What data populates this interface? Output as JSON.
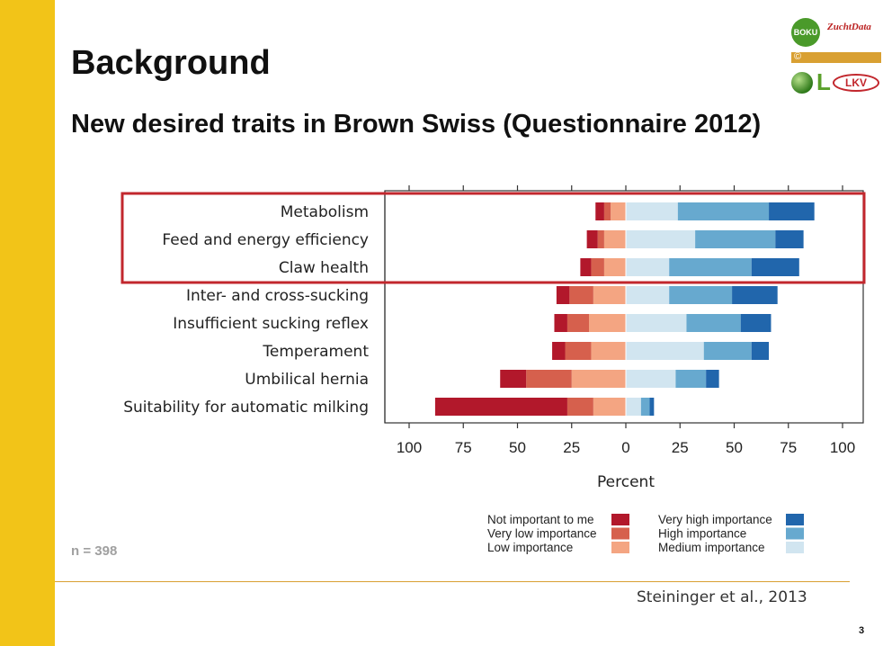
{
  "slide": {
    "title": "Background",
    "subtitle": "New desired traits in Brown Swiss (Questionnaire 2012)",
    "sample_size": "n = 398",
    "citation": "Steininger et al., 2013",
    "page_number": "3",
    "accent_color": "#f2c418",
    "divider_color": "#d9a032",
    "highlight_color": "#c2272d"
  },
  "logos": {
    "boku": "BOKU",
    "zuchtdata": "ZuchtData",
    "lkv": "LKV"
  },
  "chart_data": {
    "type": "bar",
    "orientation": "horizontal-diverging",
    "categories": [
      "Metabolism",
      "Feed and energy efficiency",
      "Claw health",
      "Inter- and cross-sucking",
      "Insufficient sucking reflex",
      "Temperament",
      "Umbilical hernia",
      "Suitability for automatic milking"
    ],
    "series": [
      {
        "name": "Not important to me",
        "side": "negative",
        "color": "#b2182b",
        "values": [
          4,
          5,
          5,
          6,
          6,
          6,
          12,
          61
        ]
      },
      {
        "name": "Very low importance",
        "side": "negative",
        "color": "#d6604d",
        "values": [
          3,
          3,
          6,
          11,
          10,
          12,
          21,
          12
        ]
      },
      {
        "name": "Low importance",
        "side": "negative",
        "color": "#f4a582",
        "values": [
          7,
          10,
          10,
          15,
          17,
          16,
          25,
          15
        ]
      },
      {
        "name": "Medium importance",
        "side": "positive",
        "color": "#d1e5f0",
        "values": [
          24,
          32,
          20,
          20,
          28,
          36,
          23,
          7
        ]
      },
      {
        "name": "High importance",
        "side": "positive",
        "color": "#67a9cf",
        "values": [
          42,
          37,
          38,
          29,
          25,
          22,
          14,
          4
        ]
      },
      {
        "name": "Very high importance",
        "side": "positive",
        "color": "#2166ac",
        "values": [
          21,
          13,
          22,
          21,
          14,
          8,
          6,
          2
        ]
      }
    ],
    "xlabel": "Percent",
    "xticks": [
      "100",
      "75",
      "50",
      "25",
      "0",
      "25",
      "50",
      "75",
      "100"
    ],
    "xlim": [
      -100,
      100
    ],
    "highlighted_categories": [
      "Metabolism",
      "Feed and energy efficiency",
      "Claw health"
    ],
    "legend": {
      "placement": "bottom",
      "left_column": [
        "Not important to me",
        "Very low importance",
        "Low importance"
      ],
      "right_column": [
        "Very high importance",
        "High importance",
        "Medium importance"
      ]
    }
  }
}
